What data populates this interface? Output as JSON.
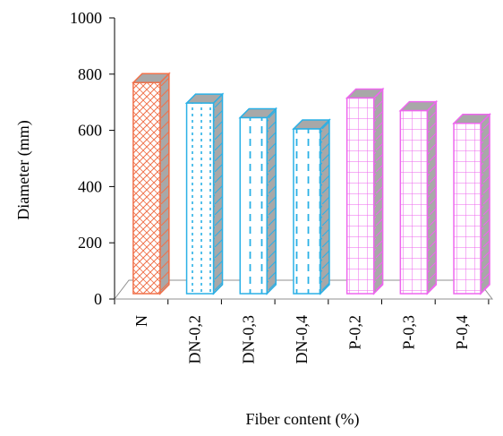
{
  "chart_data": {
    "type": "bar",
    "title": "",
    "xlabel": "Fiber content (%)",
    "ylabel": "Diameter (mm)",
    "ylim": [
      0,
      1000
    ],
    "yticks": [
      0,
      200,
      400,
      600,
      800,
      1000
    ],
    "categories": [
      "N",
      "DN-0,2",
      "DN-0,3",
      "DN-0,4",
      "P-0,2",
      "P-0,3",
      "P-0,4"
    ],
    "values": [
      770,
      697,
      645,
      605,
      715,
      670,
      625
    ],
    "bar_colors": [
      "#f0714a",
      "#2ab0e6",
      "#2ab0e6",
      "#2ab0e6",
      "#ee66ee",
      "#ee66ee",
      "#ee66ee"
    ],
    "bar_patterns": [
      "diagonal-crosshatch",
      "dotted-vertical",
      "dashed-vertical",
      "dashed-vertical",
      "grid",
      "grid",
      "grid"
    ],
    "style": "3d-column",
    "grid": false,
    "legend": "none"
  }
}
